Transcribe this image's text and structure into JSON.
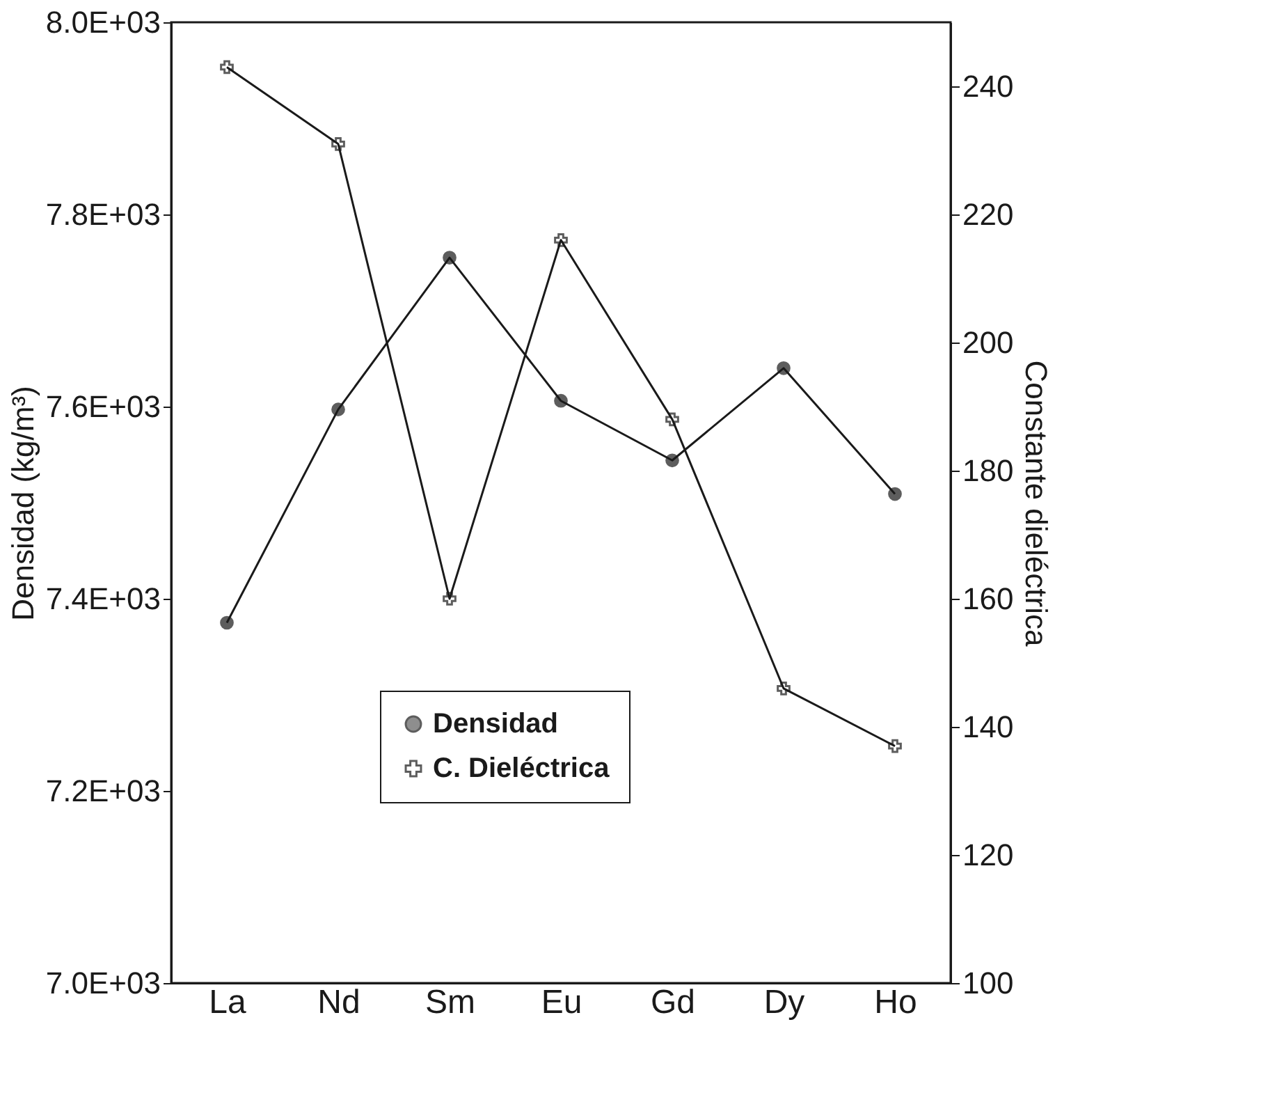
{
  "chart_data": {
    "type": "line",
    "categories": [
      "La",
      "Nd",
      "Sm",
      "Eu",
      "Gd",
      "Dy",
      "Ho"
    ],
    "ylabel": "Densidad (kg/m³)",
    "y2label": "Constante dieléctrica",
    "ylim": [
      7000,
      8000
    ],
    "yticks": [
      {
        "value": 7000,
        "label": "7.0E+03"
      },
      {
        "value": 7200,
        "label": "7.2E+03"
      },
      {
        "value": 7400,
        "label": "7.4E+03"
      },
      {
        "value": 7600,
        "label": "7.6E+03"
      },
      {
        "value": 7800,
        "label": "7.8E+03"
      },
      {
        "value": 8000,
        "label": "8.0E+03"
      }
    ],
    "y2lim": [
      100,
      250
    ],
    "y2ticks": [
      100,
      120,
      140,
      160,
      180,
      200,
      220,
      240
    ],
    "series": [
      {
        "name": "Densidad",
        "color": "#1a1a1a",
        "marker": "circle",
        "values": [
          7375,
          7597,
          7755,
          7606,
          7544,
          7640,
          7509
        ]
      },
      {
        "name": "C. Dieléctrica",
        "color": "#1a1a1a",
        "marker": "cross",
        "axis": "y2",
        "values": [
          243,
          231,
          160,
          216,
          188,
          146,
          137
        ]
      }
    ],
    "legend": "bottom",
    "grid": false
  }
}
